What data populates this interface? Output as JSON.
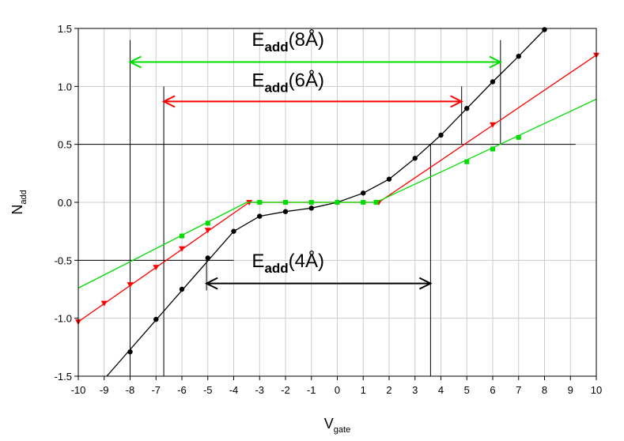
{
  "chart_data": {
    "type": "line",
    "xlabel": {
      "base": "V",
      "sub": "gate"
    },
    "ylabel": {
      "base": "N",
      "sub": "add"
    },
    "xlim": [
      -10,
      10
    ],
    "ylim": [
      -1.5,
      1.5
    ],
    "x_ticks": [
      -10,
      -9,
      -8,
      -7,
      -6,
      -5,
      -4,
      -3,
      -2,
      -1,
      0,
      1,
      2,
      3,
      4,
      5,
      6,
      7,
      8,
      9,
      10
    ],
    "y_ticks": [
      -1.5,
      -1.0,
      -0.5,
      0.0,
      0.5,
      1.0,
      1.5
    ],
    "y_tick_labels": [
      "-1.5",
      "-1.0",
      "-0.5",
      "0.0",
      "0.5",
      "1.0",
      "1.5"
    ],
    "grid": true,
    "series": [
      {
        "color": "#000000",
        "marker": "circle",
        "line": [
          [
            -8.9,
            -1.5
          ],
          [
            -4,
            -0.25
          ],
          [
            -3,
            -0.12
          ],
          [
            -2,
            -0.08
          ],
          [
            -1,
            -0.05
          ],
          [
            0,
            0
          ],
          [
            1,
            0.08
          ],
          [
            2,
            0.2
          ],
          [
            3,
            0.38
          ],
          [
            4,
            0.58
          ],
          [
            5,
            0.81
          ],
          [
            6,
            1.04
          ],
          [
            7,
            1.26
          ],
          [
            8,
            1.49
          ]
        ],
        "points": [
          [
            -8,
            -1.29
          ],
          [
            -7,
            -1.01
          ],
          [
            -6,
            -0.75
          ],
          [
            -5,
            -0.48
          ],
          [
            -4,
            -0.25
          ],
          [
            -3,
            -0.12
          ],
          [
            -2,
            -0.08
          ],
          [
            -1,
            -0.05
          ],
          [
            0,
            0
          ],
          [
            1,
            0.08
          ],
          [
            2,
            0.2
          ],
          [
            3,
            0.38
          ],
          [
            4,
            0.58
          ],
          [
            5,
            0.81
          ],
          [
            6,
            1.04
          ],
          [
            7,
            1.26
          ],
          [
            8,
            1.49
          ]
        ]
      },
      {
        "color": "#ff0000",
        "marker": "triangle-down",
        "line": [
          [
            -10,
            -1.03
          ],
          [
            -3.4,
            0
          ],
          [
            1.6,
            0
          ],
          [
            10,
            1.27
          ]
        ],
        "points": [
          [
            -10,
            -1.03
          ],
          [
            -9,
            -0.87
          ],
          [
            -8,
            -0.71
          ],
          [
            -7,
            -0.56
          ],
          [
            -6,
            -0.4
          ],
          [
            -5,
            -0.24
          ],
          [
            -3.4,
            0
          ],
          [
            1.6,
            0
          ],
          [
            6,
            0.67
          ],
          [
            10,
            1.27
          ]
        ]
      },
      {
        "color": "#00dd00",
        "marker": "square",
        "line": [
          [
            -10,
            -0.74
          ],
          [
            -3.5,
            0
          ],
          [
            1.5,
            0
          ],
          [
            10,
            0.89
          ]
        ],
        "points": [
          [
            -6,
            -0.29
          ],
          [
            -5,
            -0.18
          ],
          [
            -3,
            0
          ],
          [
            -2,
            0
          ],
          [
            -1,
            0
          ],
          [
            0,
            0
          ],
          [
            1,
            0
          ],
          [
            1.5,
            0
          ],
          [
            5,
            0.35
          ],
          [
            6,
            0.46
          ],
          [
            7,
            0.56
          ]
        ]
      }
    ],
    "reference_lines": [
      {
        "color": "#000000",
        "from": [
          -10,
          0.5
        ],
        "to": [
          9.2,
          0.5
        ]
      },
      {
        "color": "#000000",
        "from": [
          -10,
          -0.5
        ],
        "to": [
          -4,
          -0.5
        ]
      },
      {
        "color": "#000000",
        "from": [
          -8,
          1.4
        ],
        "to": [
          -8,
          -1.5
        ]
      },
      {
        "color": "#000000",
        "from": [
          -6.7,
          1.0
        ],
        "to": [
          -6.7,
          -1.5
        ]
      },
      {
        "color": "#000000",
        "from": [
          -5.05,
          -0.5
        ],
        "to": [
          -5.05,
          -0.76
        ]
      },
      {
        "color": "#000000",
        "from": [
          3.6,
          0.5
        ],
        "to": [
          3.6,
          -1.5
        ]
      },
      {
        "color": "#000000",
        "from": [
          4.8,
          1.0
        ],
        "to": [
          4.8,
          0.5
        ]
      },
      {
        "color": "#000000",
        "from": [
          6.3,
          1.4
        ],
        "to": [
          6.3,
          0.5
        ]
      }
    ],
    "annotations": [
      {
        "color": "#00dd00",
        "x_from": -8,
        "x_to": 6.3,
        "y": 1.21,
        "label_base": "E",
        "label_sub": "add",
        "label_rest": "(8Å)",
        "label_x": -3.3,
        "label_y": 1.35
      },
      {
        "color": "#ff0000",
        "x_from": -6.7,
        "x_to": 4.8,
        "y": 0.87,
        "label_base": "E",
        "label_sub": "add",
        "label_rest": "(6Å)",
        "label_x": -3.3,
        "label_y": 1.0
      },
      {
        "color": "#000000",
        "x_from": -5.05,
        "x_to": 3.6,
        "y": -0.7,
        "label_base": "E",
        "label_sub": "add",
        "label_rest": "(4Å)",
        "label_x": -3.3,
        "label_y": -0.56
      }
    ]
  }
}
